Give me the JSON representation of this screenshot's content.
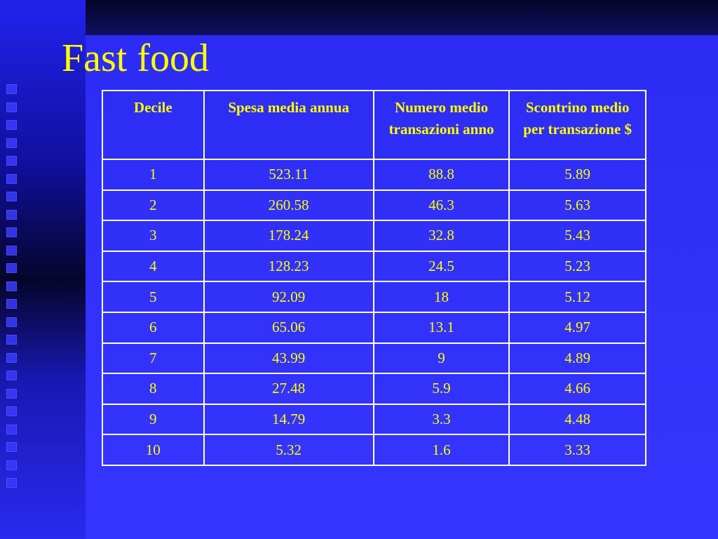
{
  "title": "Fast food",
  "table": {
    "header": [
      "Decile",
      "Spesa media annua",
      "Numero medio transazioni anno",
      "Scontrino medio per transazione $"
    ],
    "rows": [
      [
        "1",
        "523.11",
        "88.8",
        "5.89"
      ],
      [
        "2",
        "260.58",
        "46.3",
        "5.63"
      ],
      [
        "3",
        "178.24",
        "32.8",
        "5.43"
      ],
      [
        "4",
        "128.23",
        "24.5",
        "5.23"
      ],
      [
        "5",
        "92.09",
        "18",
        "5.12"
      ],
      [
        "6",
        "65.06",
        "13.1",
        "4.97"
      ],
      [
        "7",
        "43.99",
        "9",
        "4.89"
      ],
      [
        "8",
        "27.48",
        "5.9",
        "4.66"
      ],
      [
        "9",
        "14.79",
        "3.3",
        "4.48"
      ],
      [
        "10",
        "5.32",
        "1.6",
        "3.33"
      ]
    ]
  }
}
